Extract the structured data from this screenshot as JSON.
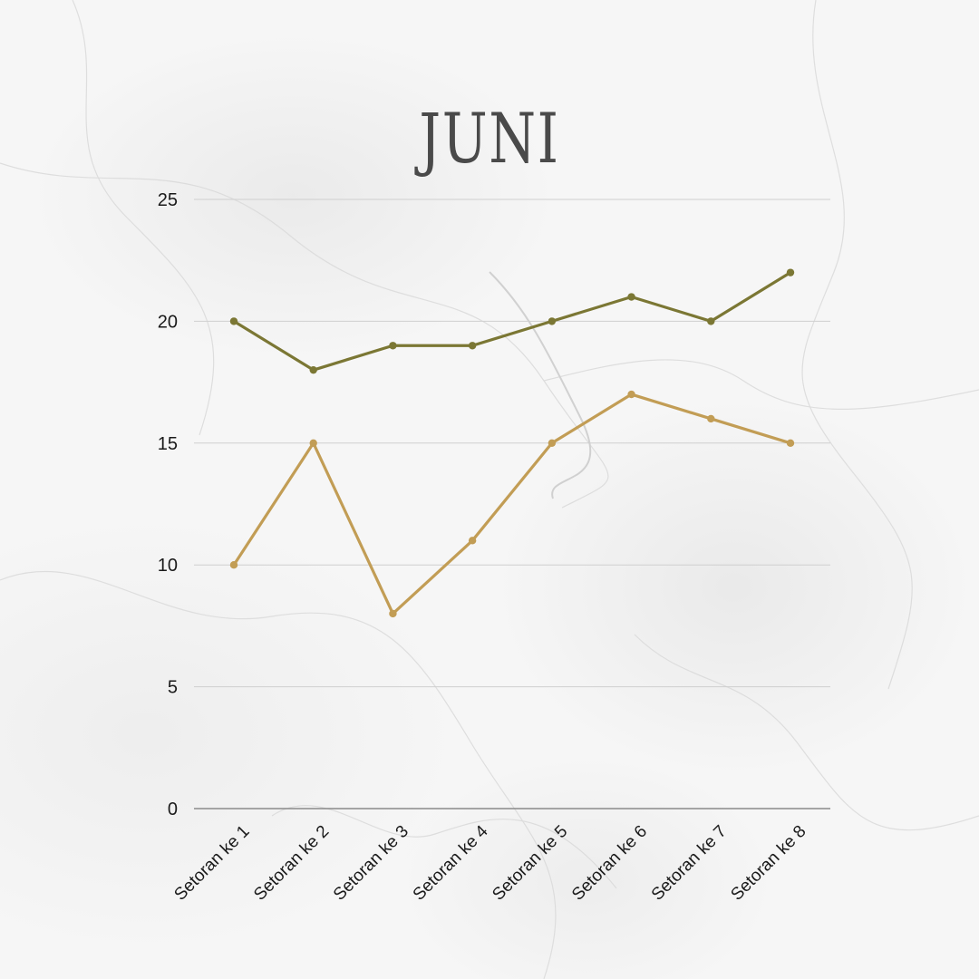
{
  "chart_data": {
    "type": "line",
    "title": "JUNI",
    "xlabel": "",
    "ylabel": "",
    "ylim": [
      0,
      25
    ],
    "yticks": [
      0,
      5,
      10,
      15,
      20,
      25
    ],
    "grid": true,
    "legend": "none",
    "categories": [
      "Setoran ke 1",
      "Setoran ke 2",
      "Setoran ke 3",
      "Setoran ke 4",
      "Setoran ke 5",
      "Setoran ke 6",
      "Setoran ke 7",
      "Setoran ke 8"
    ],
    "series": [
      {
        "color": "#7b7734",
        "values": [
          20,
          18,
          19,
          19,
          20,
          21,
          20,
          22
        ]
      },
      {
        "color": "#c29d55",
        "values": [
          10,
          15,
          8,
          11,
          15,
          17,
          16,
          15
        ]
      }
    ]
  }
}
